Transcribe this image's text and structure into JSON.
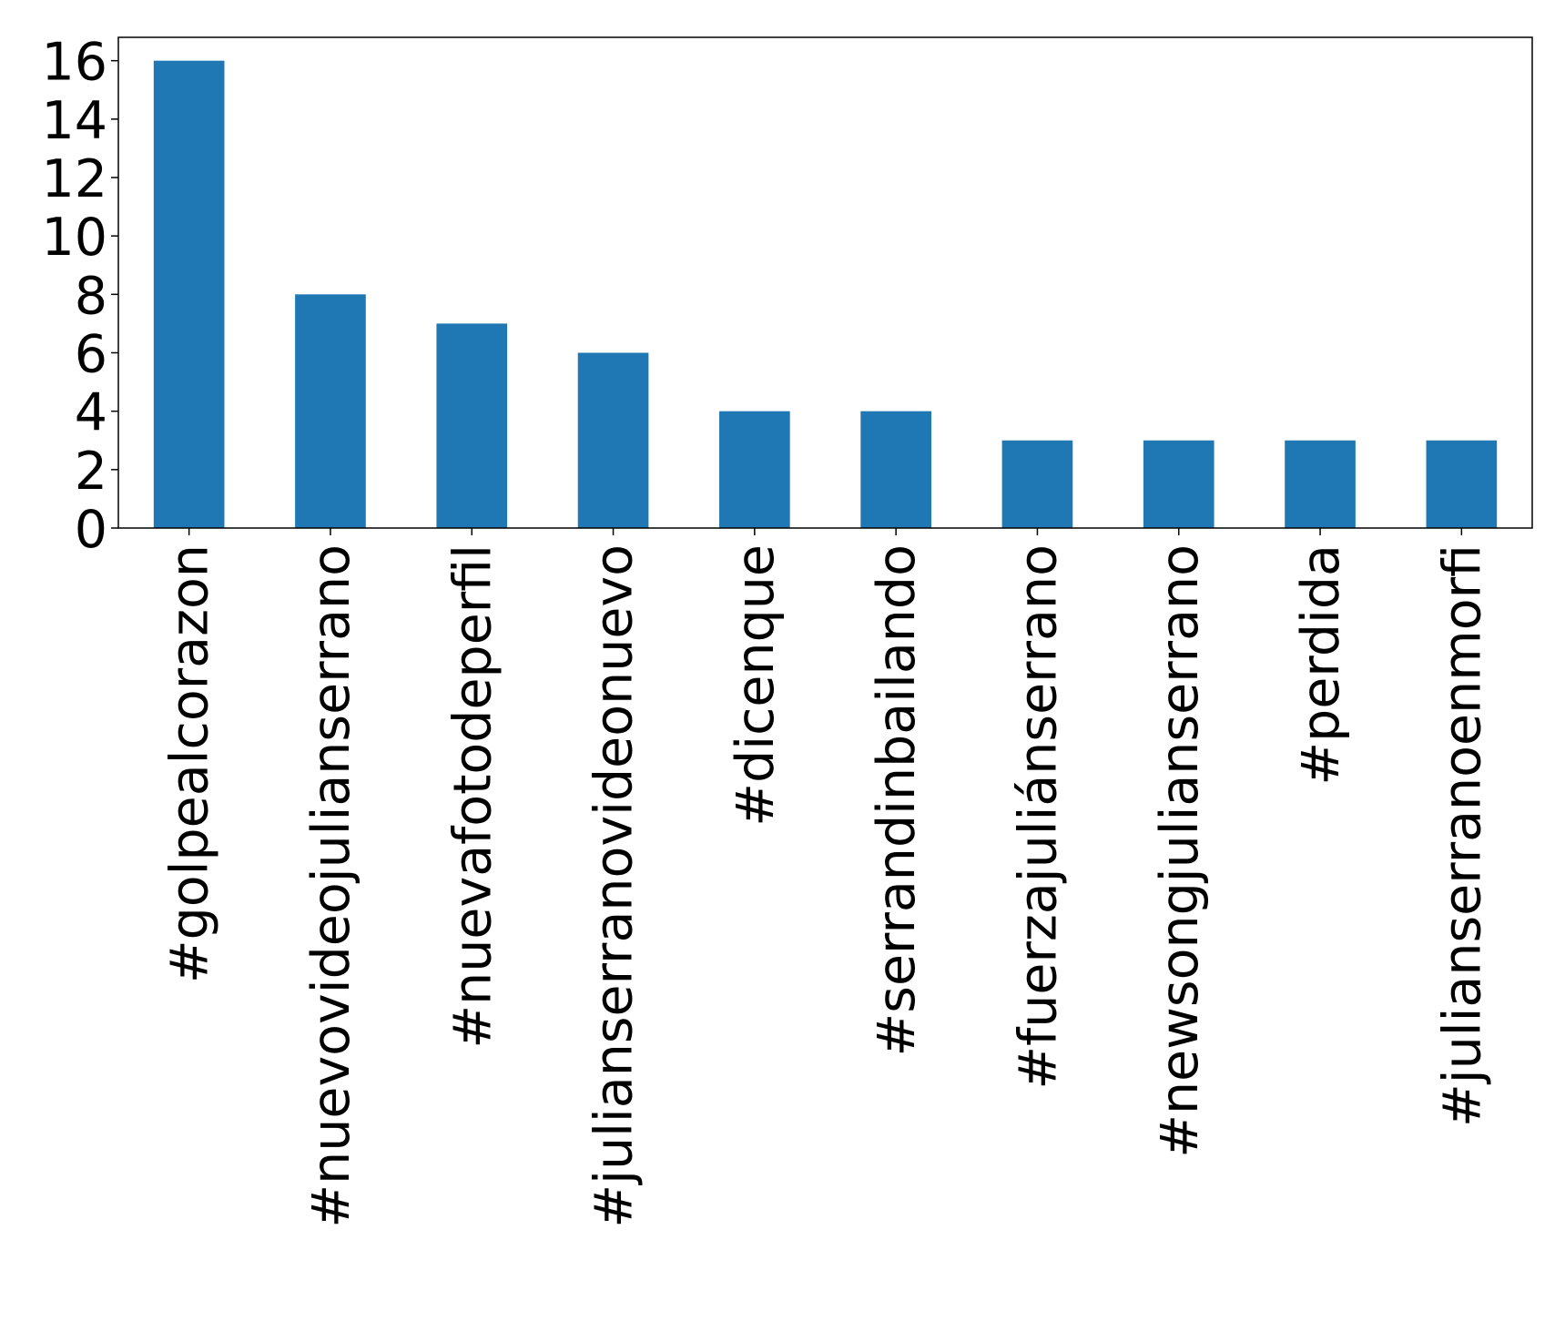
{
  "chart_data": {
    "type": "bar",
    "categories": [
      "#golpealcorazon",
      "#nuevovideojulianserrano",
      "#nuevafotodeperfil",
      "#julianserranovideonuevo",
      "#dicenque",
      "#serrandinbailando",
      "#fuerzajuliánserrano",
      "#newsongjulianserrano",
      "#perdida",
      "#julianserranoenmorfi"
    ],
    "values": [
      16,
      8,
      7,
      6,
      4,
      4,
      3,
      3,
      3,
      3
    ],
    "ylim": [
      0,
      16.8
    ],
    "yticks": [
      0,
      2,
      4,
      6,
      8,
      10,
      12,
      14,
      16
    ],
    "ytick_labels": [
      "0",
      "2",
      "4",
      "6",
      "8",
      "10",
      "12",
      "14",
      "16"
    ],
    "bar_color": "#1f77b4",
    "grid": false,
    "legend": "none"
  }
}
